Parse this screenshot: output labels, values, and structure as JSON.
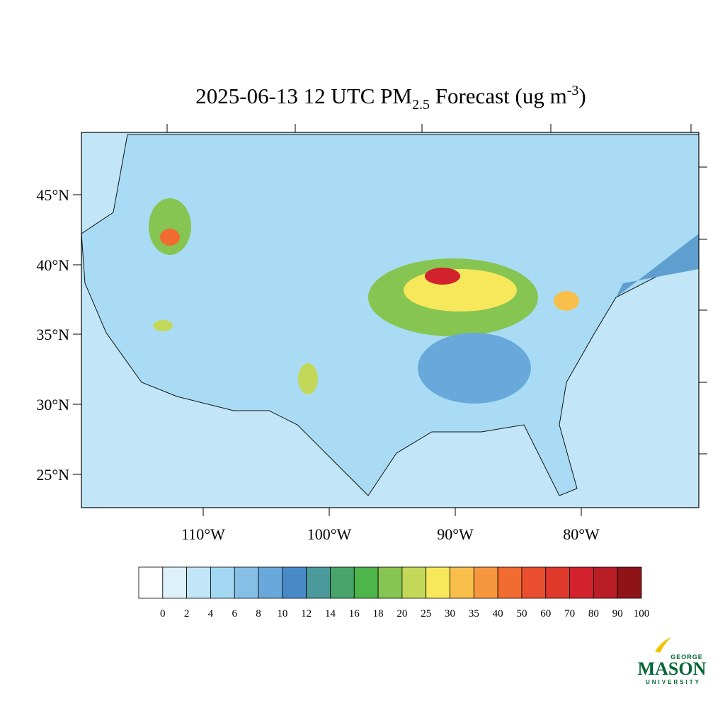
{
  "title": {
    "main": "2025-06-13 12 UTC PM",
    "sub": "2.5",
    "rest": " Forecast (ug m",
    "sup": "-3",
    "end": ")"
  },
  "lat_labels": [
    "45°N",
    "40°N",
    "35°N",
    "30°N",
    "25°N"
  ],
  "lon_labels": [
    "110°W",
    "100°W",
    "90°W",
    "80°W"
  ],
  "colorbar": {
    "colors": [
      "#ffffff",
      "#def1fa",
      "#c2e6f8",
      "#a3d8f3",
      "#85bfe5",
      "#68a8da",
      "#4a89c8",
      "#4a9a9c",
      "#47a56c",
      "#4db54a",
      "#86c552",
      "#c3d858",
      "#f6e85a",
      "#f8bf4a",
      "#f6963e",
      "#f26b30",
      "#e94f2e",
      "#df392c",
      "#d3212e",
      "#b91d26",
      "#8f1418"
    ],
    "labels": [
      "0",
      "2",
      "4",
      "6",
      "8",
      "10",
      "12",
      "14",
      "16",
      "18",
      "20",
      "25",
      "30",
      "35",
      "40",
      "50",
      "60",
      "70",
      "80",
      "90",
      "100"
    ]
  },
  "logo": {
    "top": "GEORGE",
    "main": "MASON",
    "bottom": "UNIVERSITY"
  }
}
